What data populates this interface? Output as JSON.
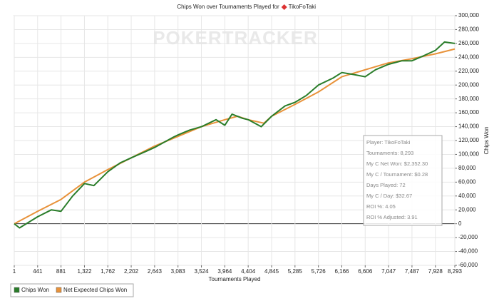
{
  "chart_data": {
    "type": "line",
    "title": "Chips Won over Tournaments Played for",
    "player": "TikoFoTaki",
    "watermark": "POKERTRACKER",
    "x_label": "Tournaments Played",
    "y_label": "Chips Won",
    "xlim": [
      1,
      8293
    ],
    "ylim": [
      -60000,
      300000
    ],
    "xticks": [
      1,
      441,
      881,
      {
        "value": 1322,
        "label": "1,322"
      },
      {
        "value": 1762,
        "label": "1,762"
      },
      {
        "value": 2202,
        "label": "2,202"
      },
      {
        "value": 2643,
        "label": "2,643"
      },
      {
        "value": 3083,
        "label": "3,083"
      },
      {
        "value": 3524,
        "label": "3,524"
      },
      {
        "value": 3964,
        "label": "3,964"
      },
      {
        "value": 4404,
        "label": "4,404"
      },
      {
        "value": 4845,
        "label": "4,845"
      },
      {
        "value": 5285,
        "label": "5,285"
      },
      {
        "value": 5726,
        "label": "5,726"
      },
      {
        "value": 6166,
        "label": "6,166"
      },
      {
        "value": 6606,
        "label": "6,606"
      },
      {
        "value": 7047,
        "label": "7,047"
      },
      {
        "value": 7487,
        "label": "7,487"
      },
      {
        "value": 7928,
        "label": "7,928"
      },
      {
        "value": 8293,
        "label": "8,293"
      }
    ],
    "yticks": [
      {
        "value": -60000,
        "label": "-60,000"
      },
      {
        "value": -40000,
        "label": "-40,000"
      },
      {
        "value": -20000,
        "label": "-20,000"
      },
      0,
      {
        "value": 20000,
        "label": "20,000"
      },
      {
        "value": 40000,
        "label": "40,000"
      },
      {
        "value": 60000,
        "label": "60,000"
      },
      {
        "value": 80000,
        "label": "80,000"
      },
      {
        "value": 100000,
        "label": "100,000"
      },
      {
        "value": 120000,
        "label": "120,000"
      },
      {
        "value": 140000,
        "label": "140,000"
      },
      {
        "value": 160000,
        "label": "160,000"
      },
      {
        "value": 180000,
        "label": "180,000"
      },
      {
        "value": 200000,
        "label": "200,000"
      },
      {
        "value": 220000,
        "label": "220,000"
      },
      {
        "value": 240000,
        "label": "240,000"
      },
      {
        "value": 260000,
        "label": "260,000"
      },
      {
        "value": 280000,
        "label": "280,000"
      },
      {
        "value": 300000,
        "label": "300,000"
      }
    ],
    "grid": true,
    "legend": "bottom-left",
    "series": [
      {
        "name": "Chips Won",
        "color": "#2a7d2a",
        "x": [
          1,
          100,
          441,
          700,
          881,
          1100,
          1322,
          1500,
          1762,
          2000,
          2202,
          2500,
          2643,
          3000,
          3083,
          3300,
          3524,
          3800,
          3964,
          4100,
          4300,
          4404,
          4650,
          4845,
          5100,
          5285,
          5500,
          5726,
          6000,
          6166,
          6400,
          6606,
          6800,
          7047,
          7300,
          7487,
          7700,
          7928,
          8100,
          8293
        ],
        "values": [
          0,
          -6000,
          10000,
          20000,
          18000,
          40000,
          58000,
          55000,
          75000,
          88000,
          95000,
          105000,
          110000,
          125000,
          128000,
          135000,
          140000,
          150000,
          142000,
          158000,
          152000,
          150000,
          140000,
          155000,
          170000,
          175000,
          185000,
          200000,
          210000,
          218000,
          215000,
          212000,
          222000,
          230000,
          235000,
          235000,
          242000,
          250000,
          262000,
          260000
        ]
      },
      {
        "name": "Net Expected Chips Won",
        "color": "#e8923a",
        "x": [
          1,
          441,
          881,
          1322,
          1762,
          2202,
          2643,
          3083,
          3524,
          3964,
          4200,
          4404,
          4700,
          4845,
          5285,
          5726,
          6166,
          6606,
          7047,
          7487,
          7928,
          8293
        ],
        "values": [
          0,
          18000,
          35000,
          60000,
          78000,
          95000,
          112000,
          126000,
          140000,
          150000,
          155000,
          150000,
          145000,
          155000,
          172000,
          190000,
          212000,
          222000,
          232000,
          238000,
          245000,
          252000
        ]
      }
    ],
    "info_box": [
      "Player: TikoFoTaki",
      "Tournaments: 8,293",
      "My C Net Won: $2,352.30",
      "My C / Tournament: $0.28",
      "Days Played: 72",
      "My C / Day: $32.67",
      "ROI %: 4.05",
      "ROI % Adjusted: 3.91"
    ]
  }
}
